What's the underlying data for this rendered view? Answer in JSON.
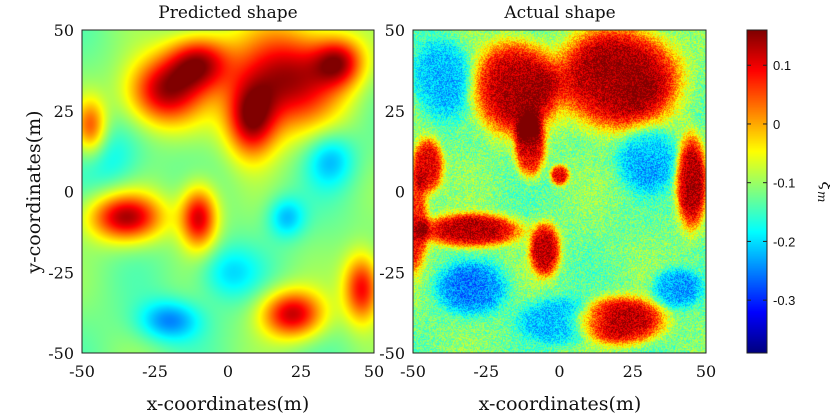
{
  "chart_data": [
    {
      "type": "heatmap",
      "title": "Predicted shape",
      "xlabel": "x-coordinates(m)",
      "ylabel": "y-coordinates(m)",
      "xlim": [
        -50,
        50
      ],
      "ylim": [
        -50,
        50
      ],
      "xticks": [
        "-50",
        "-25",
        "0",
        "25",
        "50"
      ],
      "yticks": [
        "50",
        "25",
        "0",
        "-25",
        "-50"
      ],
      "field": "smooth",
      "blobs": [
        {
          "x": -22,
          "y": 31,
          "rx": 12,
          "ry": 10,
          "v": 0.13
        },
        {
          "x": -10,
          "y": 40,
          "rx": 10,
          "ry": 8,
          "v": 0.1
        },
        {
          "x": 20,
          "y": 35,
          "rx": 18,
          "ry": 15,
          "v": 0.14
        },
        {
          "x": 8,
          "y": 22,
          "rx": 8,
          "ry": 11,
          "v": 0.11
        },
        {
          "x": 38,
          "y": 40,
          "rx": 8,
          "ry": 7,
          "v": 0.07
        },
        {
          "x": -35,
          "y": -8,
          "rx": 12,
          "ry": 7,
          "v": 0.13
        },
        {
          "x": -10,
          "y": -8,
          "rx": 6,
          "ry": 9,
          "v": 0.12
        },
        {
          "x": 22,
          "y": -38,
          "rx": 10,
          "ry": 7,
          "v": 0.12
        },
        {
          "x": 46,
          "y": -30,
          "rx": 6,
          "ry": 10,
          "v": 0.1
        },
        {
          "x": -47,
          "y": 20,
          "rx": 5,
          "ry": 8,
          "v": 0.04
        },
        {
          "x": 20,
          "y": -8,
          "rx": 6,
          "ry": 6,
          "v": -0.22
        },
        {
          "x": -20,
          "y": -40,
          "rx": 10,
          "ry": 6,
          "v": -0.25
        },
        {
          "x": 35,
          "y": 10,
          "rx": 8,
          "ry": 8,
          "v": -0.22
        },
        {
          "x": -40,
          "y": 10,
          "rx": 10,
          "ry": 10,
          "v": -0.18
        },
        {
          "x": 0,
          "y": -25,
          "rx": 10,
          "ry": 8,
          "v": -0.2
        }
      ]
    },
    {
      "type": "heatmap",
      "title": "Actual shape",
      "xlabel": "x-coordinates(m)",
      "ylabel": "",
      "xlim": [
        -50,
        50
      ],
      "ylim": [
        -50,
        50
      ],
      "xticks": [
        "-50",
        "-25",
        "0",
        "25",
        "50"
      ],
      "yticks": [
        "50",
        "25",
        "0",
        "-25",
        "-50"
      ],
      "field": "noisy",
      "blobs": [
        {
          "x": -15,
          "y": 32,
          "rx": 14,
          "ry": 14,
          "v": 0.13
        },
        {
          "x": 20,
          "y": 35,
          "rx": 20,
          "ry": 15,
          "v": 0.15
        },
        {
          "x": -10,
          "y": 14,
          "rx": 5,
          "ry": 9,
          "v": 0.11
        },
        {
          "x": 45,
          "y": 3,
          "rx": 5,
          "ry": 14,
          "v": 0.13
        },
        {
          "x": -45,
          "y": 8,
          "rx": 5,
          "ry": 8,
          "v": 0.11
        },
        {
          "x": -30,
          "y": -12,
          "rx": 16,
          "ry": 5,
          "v": 0.13
        },
        {
          "x": -5,
          "y": -18,
          "rx": 5,
          "ry": 8,
          "v": 0.12
        },
        {
          "x": 21,
          "y": -40,
          "rx": 14,
          "ry": 7,
          "v": 0.13
        },
        {
          "x": -50,
          "y": -10,
          "rx": 5,
          "ry": 14,
          "v": 0.09
        },
        {
          "x": 0,
          "y": 5,
          "rx": 3,
          "ry": 3,
          "v": 0.1
        },
        {
          "x": 40,
          "y": -30,
          "rx": 8,
          "ry": 6,
          "v": -0.24
        },
        {
          "x": -30,
          "y": -30,
          "rx": 12,
          "ry": 8,
          "v": -0.24
        },
        {
          "x": -40,
          "y": 35,
          "rx": 10,
          "ry": 12,
          "v": -0.22
        },
        {
          "x": 30,
          "y": 10,
          "rx": 10,
          "ry": 10,
          "v": -0.22
        },
        {
          "x": 0,
          "y": -40,
          "rx": 14,
          "ry": 7,
          "v": -0.22
        }
      ]
    }
  ],
  "colorbar": {
    "label": "ξ",
    "label_sub": "m",
    "min": -0.39,
    "max": 0.16,
    "ticks": [
      "0.1",
      "0",
      "-0.1",
      "-0.2",
      "-0.3"
    ],
    "tick_values": [
      0.1,
      0,
      -0.1,
      -0.2,
      -0.3
    ],
    "colormap": "jet"
  }
}
